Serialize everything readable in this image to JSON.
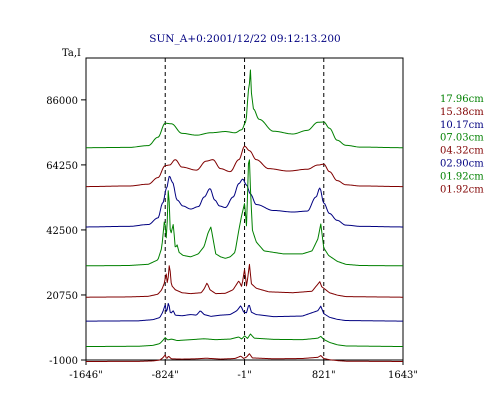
{
  "chart_data": {
    "type": "line",
    "title": "SUN_A+0:2001/12/22 09:12:13.200",
    "ylabel": "Ta,I",
    "xlabel": "",
    "ylim": [
      -1000,
      100000
    ],
    "xlim": [
      -1646,
      1643
    ],
    "y_ticks": [
      {
        "value": 86000,
        "label": "86000"
      },
      {
        "value": 64250,
        "label": "64250"
      },
      {
        "value": 42500,
        "label": "42500"
      },
      {
        "value": 20750,
        "label": "20750"
      },
      {
        "value": -1000,
        "label": "-1000"
      }
    ],
    "x_ticks": [
      {
        "value": -1646,
        "label": "-1646\""
      },
      {
        "value": -824,
        "label": "-824\""
      },
      {
        "value": -1,
        "label": "-1\""
      },
      {
        "value": 821,
        "label": "821\""
      },
      {
        "value": 1643,
        "label": "1643\""
      }
    ],
    "vlines": [
      -824,
      -1,
      821
    ],
    "grid": false,
    "legend_position": "right",
    "series": [
      {
        "name": "17.96cm",
        "color": "#008000",
        "baseline": 70000,
        "kind": "broad",
        "points": [
          [
            -1646,
            0
          ],
          [
            -1200,
            100
          ],
          [
            -1000,
            700
          ],
          [
            -900,
            3500
          ],
          [
            -824,
            8200
          ],
          [
            -760,
            8000
          ],
          [
            -650,
            4800
          ],
          [
            -500,
            4200
          ],
          [
            -350,
            5000
          ],
          [
            -200,
            5400
          ],
          [
            -100,
            5000
          ],
          [
            -30,
            6000
          ],
          [
            10,
            8500
          ],
          [
            45,
            20000
          ],
          [
            60,
            26000
          ],
          [
            72,
            18000
          ],
          [
            90,
            13000
          ],
          [
            150,
            9500
          ],
          [
            300,
            5500
          ],
          [
            500,
            4600
          ],
          [
            650,
            5800
          ],
          [
            760,
            8500
          ],
          [
            821,
            8600
          ],
          [
            880,
            6500
          ],
          [
            960,
            2500
          ],
          [
            1050,
            800
          ],
          [
            1200,
            200
          ],
          [
            1643,
            0
          ]
        ]
      },
      {
        "name": "15.38cm",
        "color": "#800000",
        "baseline": 57000,
        "kind": "broad",
        "points": [
          [
            -1646,
            0
          ],
          [
            -1200,
            200
          ],
          [
            -1000,
            800
          ],
          [
            -900,
            3000
          ],
          [
            -824,
            7000
          ],
          [
            -780,
            7200
          ],
          [
            -720,
            9000
          ],
          [
            -650,
            6500
          ],
          [
            -500,
            5500
          ],
          [
            -400,
            8500
          ],
          [
            -330,
            9000
          ],
          [
            -250,
            6000
          ],
          [
            -150,
            5000
          ],
          [
            -60,
            9000
          ],
          [
            0,
            13500
          ],
          [
            50,
            12000
          ],
          [
            120,
            9000
          ],
          [
            250,
            6000
          ],
          [
            450,
            5200
          ],
          [
            650,
            5800
          ],
          [
            760,
            7200
          ],
          [
            821,
            7500
          ],
          [
            880,
            5000
          ],
          [
            960,
            2000
          ],
          [
            1050,
            600
          ],
          [
            1200,
            200
          ],
          [
            1643,
            0
          ]
        ]
      },
      {
        "name": "10.17cm",
        "color": "#000080",
        "baseline": 43500,
        "kind": "broad",
        "points": [
          [
            -1646,
            0
          ],
          [
            -1200,
            200
          ],
          [
            -1000,
            800
          ],
          [
            -900,
            3000
          ],
          [
            -850,
            8000
          ],
          [
            -810,
            13000
          ],
          [
            -780,
            17000
          ],
          [
            -750,
            15000
          ],
          [
            -700,
            9000
          ],
          [
            -640,
            7000
          ],
          [
            -560,
            6000
          ],
          [
            -480,
            6800
          ],
          [
            -420,
            10000
          ],
          [
            -360,
            12800
          ],
          [
            -310,
            9000
          ],
          [
            -260,
            7000
          ],
          [
            -200,
            6500
          ],
          [
            -120,
            10000
          ],
          [
            -60,
            14500
          ],
          [
            -20,
            16000
          ],
          [
            20,
            14000
          ],
          [
            60,
            11000
          ],
          [
            120,
            7500
          ],
          [
            300,
            5500
          ],
          [
            500,
            5000
          ],
          [
            650,
            5300
          ],
          [
            740,
            10000
          ],
          [
            780,
            13000
          ],
          [
            821,
            8000
          ],
          [
            880,
            4500
          ],
          [
            960,
            2200
          ],
          [
            1050,
            600
          ],
          [
            1200,
            200
          ],
          [
            1643,
            0
          ]
        ]
      },
      {
        "name": "07.03cm",
        "color": "#008000",
        "baseline": 30500,
        "kind": "spiky",
        "points": [
          [
            -1646,
            0
          ],
          [
            -1200,
            100
          ],
          [
            -1000,
            500
          ],
          [
            -900,
            2000
          ],
          [
            -860,
            6000
          ],
          [
            -830,
            16000
          ],
          [
            -810,
            8000
          ],
          [
            -790,
            28000
          ],
          [
            -770,
            10000
          ],
          [
            -740,
            14000
          ],
          [
            -720,
            6000
          ],
          [
            -700,
            7000
          ],
          [
            -680,
            4500
          ],
          [
            -640,
            3500
          ],
          [
            -560,
            3000
          ],
          [
            -480,
            4000
          ],
          [
            -420,
            6500
          ],
          [
            -380,
            11000
          ],
          [
            -350,
            13000
          ],
          [
            -300,
            4000
          ],
          [
            -250,
            3000
          ],
          [
            -200,
            2500
          ],
          [
            -150,
            3000
          ],
          [
            -100,
            4500
          ],
          [
            -60,
            12000
          ],
          [
            -30,
            17000
          ],
          [
            0,
            21000
          ],
          [
            20,
            13000
          ],
          [
            45,
            40000
          ],
          [
            60,
            26000
          ],
          [
            80,
            12000
          ],
          [
            120,
            8000
          ],
          [
            200,
            5000
          ],
          [
            400,
            4000
          ],
          [
            600,
            4000
          ],
          [
            700,
            5000
          ],
          [
            760,
            9000
          ],
          [
            790,
            14000
          ],
          [
            821,
            6000
          ],
          [
            870,
            3500
          ],
          [
            960,
            1500
          ],
          [
            1050,
            500
          ],
          [
            1200,
            100
          ],
          [
            1643,
            0
          ]
        ]
      },
      {
        "name": "04.32cm",
        "color": "#800000",
        "baseline": 20000,
        "kind": "spiky",
        "points": [
          [
            -1646,
            0
          ],
          [
            -1200,
            100
          ],
          [
            -1000,
            300
          ],
          [
            -900,
            1000
          ],
          [
            -860,
            2500
          ],
          [
            -830,
            5000
          ],
          [
            -815,
            8200
          ],
          [
            -800,
            4000
          ],
          [
            -780,
            11500
          ],
          [
            -760,
            4000
          ],
          [
            -720,
            2500
          ],
          [
            -650,
            1500
          ],
          [
            -560,
            1200
          ],
          [
            -450,
            1500
          ],
          [
            -420,
            2800
          ],
          [
            -390,
            4800
          ],
          [
            -360,
            2500
          ],
          [
            -300,
            1200
          ],
          [
            -200,
            1300
          ],
          [
            -120,
            2500
          ],
          [
            -60,
            5500
          ],
          [
            -30,
            3500
          ],
          [
            0,
            9500
          ],
          [
            20,
            3500
          ],
          [
            50,
            11000
          ],
          [
            70,
            4500
          ],
          [
            120,
            3000
          ],
          [
            250,
            1800
          ],
          [
            500,
            1500
          ],
          [
            700,
            2000
          ],
          [
            780,
            5200
          ],
          [
            800,
            3500
          ],
          [
            821,
            3000
          ],
          [
            880,
            1500
          ],
          [
            960,
            700
          ],
          [
            1050,
            200
          ],
          [
            1643,
            0
          ]
        ]
      },
      {
        "name": "02.90cm",
        "color": "#000080",
        "baseline": 12000,
        "kind": "spiky",
        "points": [
          [
            -1646,
            0
          ],
          [
            -1100,
            100
          ],
          [
            -950,
            500
          ],
          [
            -880,
            1200
          ],
          [
            -850,
            3000
          ],
          [
            -824,
            5500
          ],
          [
            -810,
            2500
          ],
          [
            -790,
            6500
          ],
          [
            -770,
            2500
          ],
          [
            -740,
            3500
          ],
          [
            -720,
            2000
          ],
          [
            -650,
            1800
          ],
          [
            -560,
            2200
          ],
          [
            -500,
            2000
          ],
          [
            -460,
            3500
          ],
          [
            -420,
            2200
          ],
          [
            -350,
            1600
          ],
          [
            -250,
            2000
          ],
          [
            -150,
            2200
          ],
          [
            -80,
            3500
          ],
          [
            -40,
            5200
          ],
          [
            -10,
            3000
          ],
          [
            20,
            2800
          ],
          [
            45,
            5800
          ],
          [
            70,
            3000
          ],
          [
            120,
            2200
          ],
          [
            300,
            1500
          ],
          [
            600,
            1700
          ],
          [
            760,
            3500
          ],
          [
            790,
            5000
          ],
          [
            821,
            2500
          ],
          [
            880,
            1300
          ],
          [
            960,
            600
          ],
          [
            1050,
            200
          ],
          [
            1643,
            0
          ]
        ]
      },
      {
        "name": "01.92cm",
        "color": "#008000",
        "baseline": 3500,
        "kind": "spiky",
        "points": [
          [
            -1646,
            0
          ],
          [
            -1100,
            100
          ],
          [
            -950,
            400
          ],
          [
            -880,
            1000
          ],
          [
            -850,
            2000
          ],
          [
            -824,
            3000
          ],
          [
            -800,
            2200
          ],
          [
            -760,
            2500
          ],
          [
            -700,
            2000
          ],
          [
            -560,
            2300
          ],
          [
            -420,
            2600
          ],
          [
            -300,
            2300
          ],
          [
            -150,
            2500
          ],
          [
            -60,
            3200
          ],
          [
            -30,
            2500
          ],
          [
            0,
            3600
          ],
          [
            30,
            2700
          ],
          [
            60,
            4200
          ],
          [
            100,
            2800
          ],
          [
            300,
            2400
          ],
          [
            600,
            2300
          ],
          [
            760,
            2800
          ],
          [
            790,
            3400
          ],
          [
            821,
            2400
          ],
          [
            880,
            1400
          ],
          [
            960,
            600
          ],
          [
            1050,
            200
          ],
          [
            1643,
            0
          ]
        ]
      },
      {
        "name": "01.92cm",
        "color": "#800000",
        "baseline": -1500,
        "kind": "spiky",
        "points": [
          [
            -1646,
            0
          ],
          [
            -1100,
            50
          ],
          [
            -950,
            200
          ],
          [
            -880,
            500
          ],
          [
            -850,
            1200
          ],
          [
            -824,
            2200
          ],
          [
            -810,
            800
          ],
          [
            -790,
            1800
          ],
          [
            -760,
            900
          ],
          [
            -650,
            800
          ],
          [
            -500,
            900
          ],
          [
            -400,
            1100
          ],
          [
            -250,
            800
          ],
          [
            -100,
            1000
          ],
          [
            -40,
            1800
          ],
          [
            -10,
            1000
          ],
          [
            20,
            1500
          ],
          [
            50,
            2600
          ],
          [
            80,
            1200
          ],
          [
            300,
            900
          ],
          [
            600,
            1000
          ],
          [
            760,
            1400
          ],
          [
            790,
            2000
          ],
          [
            821,
            1000
          ],
          [
            880,
            600
          ],
          [
            960,
            300
          ],
          [
            1050,
            100
          ],
          [
            1643,
            0
          ]
        ]
      }
    ]
  }
}
